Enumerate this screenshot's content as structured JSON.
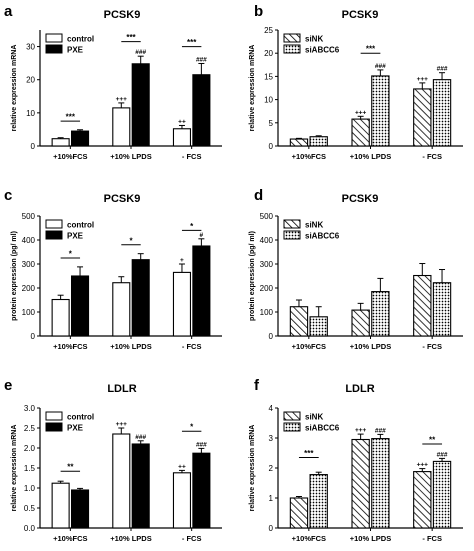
{
  "chart_data": [
    {
      "panel": "a",
      "type": "bar",
      "title": "PCSK9",
      "ylabel": "relative expression mRNA",
      "ylim": [
        0,
        35
      ],
      "yticks": [
        0,
        10,
        20,
        30
      ],
      "categories": [
        "+10%FCS",
        "+10% LPDS",
        "- FCS"
      ],
      "legend": [
        "control",
        "PXE"
      ],
      "series": [
        {
          "name": "control",
          "fill": "white",
          "values": [
            2.2,
            11.5,
            5.2
          ],
          "errors": [
            0.3,
            1.5,
            1.0
          ],
          "marks": [
            "",
            "+++",
            "++"
          ]
        },
        {
          "name": "PXE",
          "fill": "black",
          "values": [
            4.5,
            24.8,
            21.5
          ],
          "errors": [
            0.4,
            2.3,
            3.4
          ],
          "marks": [
            "",
            "###",
            "###"
          ]
        }
      ],
      "brackets": [
        {
          "category": 0,
          "label": "***",
          "y": 7.5
        },
        {
          "category": 1,
          "label": "***",
          "y": 31.5
        },
        {
          "category": 2,
          "label": "***",
          "y": 30.0
        }
      ]
    },
    {
      "panel": "b",
      "type": "bar",
      "title": "PCSK9",
      "ylabel": "relative expression mRNA",
      "ylim": [
        0,
        25
      ],
      "yticks": [
        0,
        5,
        10,
        15,
        20,
        25
      ],
      "categories": [
        "+10%FCS",
        "+10% LPDS",
        "- FCS"
      ],
      "legend": [
        "siNK",
        "siABCC6"
      ],
      "series": [
        {
          "name": "siNK",
          "fill": "hatch",
          "values": [
            1.5,
            5.8,
            12.3
          ],
          "errors": [
            0.15,
            0.6,
            1.3
          ],
          "marks": [
            "",
            "+++",
            "+++"
          ]
        },
        {
          "name": "siABCC6",
          "fill": "dots",
          "values": [
            2.0,
            15.1,
            14.3
          ],
          "errors": [
            0.2,
            1.3,
            1.5
          ],
          "marks": [
            "",
            "###",
            "###"
          ]
        }
      ],
      "brackets": [
        {
          "category": 1,
          "label": "***",
          "y": 20.0
        }
      ]
    },
    {
      "panel": "c",
      "type": "bar",
      "title": "PCSK9",
      "ylabel": "protein expression (pg/ ml)",
      "ylim": [
        0,
        500
      ],
      "yticks": [
        0,
        100,
        200,
        300,
        400,
        500
      ],
      "categories": [
        "+10%FCS",
        "+10% LPDS",
        "- FCS"
      ],
      "legend": [
        "control",
        "PXE"
      ],
      "series": [
        {
          "name": "control",
          "fill": "white",
          "values": [
            152,
            222,
            265
          ],
          "errors": [
            18,
            25,
            35
          ],
          "marks": [
            "",
            "",
            "+"
          ]
        },
        {
          "name": "PXE",
          "fill": "black",
          "values": [
            250,
            318,
            375
          ],
          "errors": [
            38,
            25,
            30
          ],
          "marks": [
            "",
            "",
            "#"
          ]
        }
      ],
      "brackets": [
        {
          "category": 0,
          "label": "*",
          "y": 325
        },
        {
          "category": 1,
          "label": "*",
          "y": 380
        },
        {
          "category": 2,
          "label": "*",
          "y": 440
        }
      ]
    },
    {
      "panel": "d",
      "type": "bar",
      "title": "PCSK9",
      "ylabel": "protein expression (pg/ ml)",
      "ylim": [
        0,
        500
      ],
      "yticks": [
        0,
        100,
        200,
        300,
        400,
        500
      ],
      "categories": [
        "+10%FCS",
        "+10% LPDS",
        "- FCS"
      ],
      "legend": [
        "siNK",
        "siABCC6"
      ],
      "series": [
        {
          "name": "siNK",
          "fill": "hatch",
          "values": [
            122,
            108,
            252
          ],
          "errors": [
            28,
            28,
            50
          ],
          "marks": [
            "",
            "",
            ""
          ]
        },
        {
          "name": "siABCC6",
          "fill": "dots",
          "values": [
            80,
            185,
            222
          ],
          "errors": [
            42,
            55,
            55
          ],
          "marks": [
            "",
            "",
            ""
          ]
        }
      ],
      "brackets": []
    },
    {
      "panel": "e",
      "type": "bar",
      "title": "LDLR",
      "ylabel": "relative expression mRNA",
      "ylim": [
        0,
        3.0
      ],
      "yticks": [
        0.0,
        0.5,
        1.0,
        1.5,
        2.0,
        2.5,
        3.0
      ],
      "categories": [
        "+10%FCS",
        "+10% LPDS",
        "- FCS"
      ],
      "legend": [
        "control",
        "PXE"
      ],
      "series": [
        {
          "name": "control",
          "fill": "white",
          "values": [
            1.12,
            2.35,
            1.38
          ],
          "errors": [
            0.05,
            0.15,
            0.06
          ],
          "marks": [
            "",
            "+++",
            "++"
          ]
        },
        {
          "name": "PXE",
          "fill": "black",
          "values": [
            0.95,
            2.1,
            1.87
          ],
          "errors": [
            0.04,
            0.08,
            0.12
          ],
          "marks": [
            "",
            "###",
            "###"
          ]
        }
      ],
      "brackets": [
        {
          "category": 0,
          "label": "**",
          "y": 1.42
        },
        {
          "category": 2,
          "label": "*",
          "y": 2.42
        }
      ]
    },
    {
      "panel": "f",
      "type": "bar",
      "title": "LDLR",
      "ylabel": "relative expression mRNA",
      "ylim": [
        0,
        4
      ],
      "yticks": [
        0,
        1,
        2,
        3,
        4
      ],
      "categories": [
        "+10%FCS",
        "+10% LPDS",
        "- FCS"
      ],
      "legend": [
        "siNK",
        "siABCC6"
      ],
      "series": [
        {
          "name": "siNK",
          "fill": "hatch",
          "values": [
            1.0,
            2.95,
            1.88
          ],
          "errors": [
            0.05,
            0.18,
            0.1
          ],
          "marks": [
            "",
            "+++",
            "+++"
          ]
        },
        {
          "name": "siABCC6",
          "fill": "dots",
          "values": [
            1.78,
            2.98,
            2.22
          ],
          "errors": [
            0.08,
            0.14,
            0.1
          ],
          "marks": [
            "",
            "###",
            "###"
          ]
        }
      ],
      "brackets": [
        {
          "category": 0,
          "label": "***",
          "y": 2.35
        },
        {
          "category": 2,
          "label": "**",
          "y": 2.8
        }
      ]
    }
  ]
}
